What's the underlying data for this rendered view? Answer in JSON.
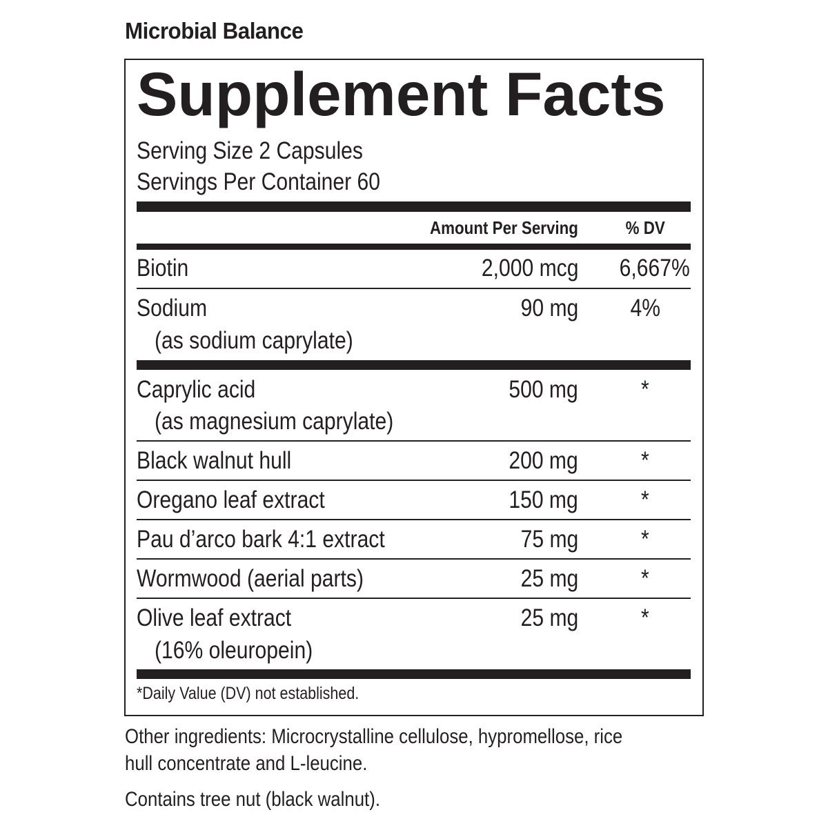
{
  "product_name": "Microbial Balance",
  "title": "Supplement Facts",
  "serving_size": "Serving Size 2 Capsules",
  "servings_per_container": "Servings Per Container 60",
  "header": {
    "amount": "Amount Per Serving",
    "dv": "% DV"
  },
  "rows": [
    {
      "name": "Biotin",
      "amount": "2,000 mcg",
      "dv": "6,667%"
    },
    {
      "name": "Sodium",
      "sub": "(as sodium caprylate)",
      "amount": "90 mg",
      "dv": "4%"
    },
    {
      "name": "Caprylic acid",
      "sub": "(as magnesium caprylate)",
      "amount": "500 mg",
      "dv": "*"
    },
    {
      "name": "Black walnut hull",
      "amount": "200 mg",
      "dv": "*"
    },
    {
      "name": "Oregano leaf extract",
      "amount": "150 mg",
      "dv": "*"
    },
    {
      "name": "Pau d’arco bark 4:1 extract",
      "amount": "75 mg",
      "dv": "*"
    },
    {
      "name": "Wormwood (aerial parts)",
      "amount": "25 mg",
      "dv": "*"
    },
    {
      "name": "Olive leaf extract",
      "sub": "(16% oleuropein)",
      "amount": "25 mg",
      "dv": "*"
    }
  ],
  "footnote": "*Daily Value (DV) not established.",
  "other_ingredients_1": "Other ingredients: Microcrystalline cellulose, hypromellose, rice",
  "other_ingredients_2": "hull concentrate and L-leucine.",
  "allergen": "Contains tree nut (black walnut)."
}
